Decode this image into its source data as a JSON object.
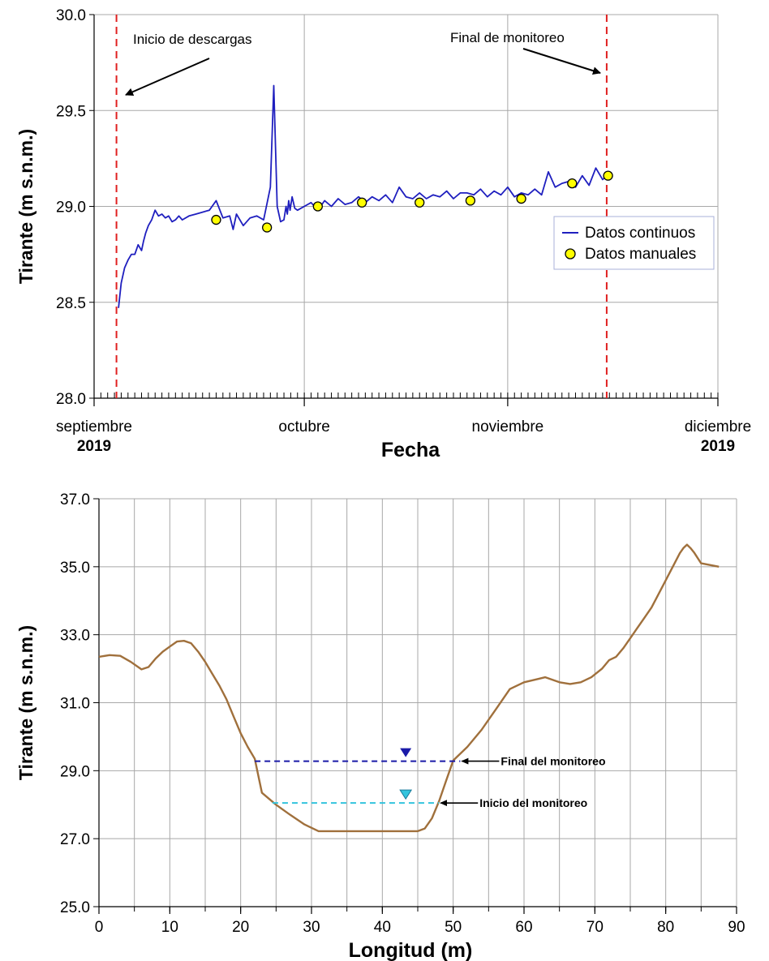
{
  "colors": {
    "continuous": "#1f1fbf",
    "manual_fill": "#ffff00",
    "vline": "#e02020",
    "profile": "#a0703c",
    "final_level": "#1a1aa8",
    "inicio_level": "#33c4dd",
    "grid": "#a8a8a8"
  },
  "chart_data": [
    {
      "type": "line",
      "ylabel": "Tirante (m s.n.m.)",
      "xlabel": "Fecha",
      "ylim": [
        28.0,
        30.0
      ],
      "yticks": [
        "28.0",
        "28.5",
        "29.0",
        "29.5",
        "30.0"
      ],
      "x_range_days": [
        0,
        92
      ],
      "x_tick_labels": [
        {
          "day": 0,
          "label": "septiembre",
          "year": "2019"
        },
        {
          "day": 31,
          "label": "octubre",
          "year": ""
        },
        {
          "day": 61,
          "label": "noviembre",
          "year": ""
        },
        {
          "day": 92,
          "label": "diciembre",
          "year": "2019"
        }
      ],
      "grid": "vertical lines at month starts, horizontal lines at each y tick",
      "legend": {
        "placement": "right",
        "entries": [
          "Datos continuos",
          "Datos manuales"
        ]
      },
      "annotations": [
        {
          "text": "Inicio de descargas",
          "day": 3.3
        },
        {
          "text": "Final de monitoreo",
          "day": 75.6
        }
      ],
      "series": [
        {
          "name": "Datos continuos",
          "style": "line",
          "x": [
            3.6,
            4.0,
            4.5,
            5.0,
            5.5,
            6.0,
            6.5,
            7.0,
            7.3,
            7.6,
            8.0,
            8.5,
            9.0,
            9.5,
            10.0,
            10.5,
            11.0,
            11.5,
            12.0,
            12.5,
            13.0,
            14.0,
            15.0,
            16.0,
            17.0,
            18.0,
            19.0,
            20.0,
            20.5,
            21.0,
            22.0,
            23.0,
            24.0,
            25.0,
            26.0,
            26.5,
            27.0,
            27.5,
            28.0,
            28.3,
            28.5,
            28.7,
            28.9,
            29.2,
            29.6,
            30.0,
            31.0,
            32.0,
            33.0,
            34.0,
            35.0,
            36.0,
            37.0,
            38.0,
            39.0,
            40.0,
            41.0,
            42.0,
            43.0,
            44.0,
            45.0,
            46.0,
            47.0,
            48.0,
            49.0,
            50.0,
            51.0,
            52.0,
            53.0,
            54.0,
            55.0,
            56.0,
            57.0,
            58.0,
            59.0,
            60.0,
            61.0,
            62.0,
            63.0,
            64.0,
            65.0,
            66.0,
            67.0,
            68.0,
            69.0,
            70.0,
            71.0,
            72.0,
            73.0,
            74.0,
            75.0,
            75.6
          ],
          "values": [
            28.47,
            28.6,
            28.68,
            28.72,
            28.75,
            28.75,
            28.8,
            28.77,
            28.82,
            28.86,
            28.9,
            28.93,
            28.98,
            28.95,
            28.96,
            28.94,
            28.95,
            28.92,
            28.93,
            28.95,
            28.93,
            28.95,
            28.96,
            28.97,
            28.98,
            29.03,
            28.94,
            28.95,
            28.88,
            28.96,
            28.9,
            28.94,
            28.95,
            28.93,
            29.1,
            29.63,
            29.0,
            28.92,
            28.93,
            29.0,
            28.96,
            29.03,
            28.98,
            29.05,
            28.99,
            28.98,
            29.0,
            29.02,
            28.98,
            29.03,
            29.0,
            29.04,
            29.01,
            29.02,
            29.05,
            29.02,
            29.05,
            29.03,
            29.06,
            29.02,
            29.1,
            29.05,
            29.04,
            29.07,
            29.04,
            29.06,
            29.05,
            29.08,
            29.04,
            29.07,
            29.07,
            29.06,
            29.09,
            29.05,
            29.08,
            29.06,
            29.1,
            29.05,
            29.07,
            29.06,
            29.09,
            29.06,
            29.18,
            29.1,
            29.12,
            29.13,
            29.1,
            29.16,
            29.11,
            29.2,
            29.14,
            29.16
          ]
        },
        {
          "name": "Datos manuales",
          "style": "points",
          "x": [
            18.0,
            25.5,
            33.0,
            39.5,
            48.0,
            55.5,
            63.0,
            70.5,
            75.8
          ],
          "values": [
            28.93,
            28.89,
            29.0,
            29.02,
            29.02,
            29.03,
            29.04,
            29.12,
            29.16
          ]
        }
      ]
    },
    {
      "type": "line",
      "ylabel": "Tirante (m s.n.m.)",
      "xlabel": "Longitud (m)",
      "xlim": [
        0,
        90
      ],
      "ylim": [
        25.0,
        37.0
      ],
      "xticks": [
        0,
        10,
        20,
        30,
        40,
        50,
        60,
        70,
        80,
        90
      ],
      "yticks": [
        "25.0",
        "27.0",
        "29.0",
        "31.0",
        "33.0",
        "35.0",
        "37.0"
      ],
      "grid": true,
      "series": [
        {
          "style": "line",
          "x": [
            0,
            1.5,
            3,
            4.5,
            6,
            7,
            8,
            9,
            10,
            11,
            12,
            13,
            14,
            15,
            16,
            17,
            18,
            19,
            20,
            21,
            22,
            23,
            25,
            27,
            29,
            31,
            35,
            40,
            45,
            46,
            47,
            48,
            49,
            50,
            52,
            54,
            56,
            58,
            60,
            62,
            63,
            65,
            66.5,
            68,
            69.5,
            71,
            72,
            73,
            74,
            75,
            76,
            77,
            78,
            79,
            80,
            81,
            82,
            82.5,
            83,
            83.5,
            84,
            85,
            87.5
          ],
          "values": [
            32.35,
            32.4,
            32.38,
            32.2,
            31.98,
            32.05,
            32.3,
            32.5,
            32.65,
            32.8,
            32.82,
            32.75,
            32.5,
            32.2,
            31.85,
            31.5,
            31.1,
            30.6,
            30.1,
            29.7,
            29.35,
            28.35,
            28.0,
            27.7,
            27.42,
            27.22,
            27.22,
            27.22,
            27.22,
            27.3,
            27.6,
            28.1,
            28.7,
            29.3,
            29.7,
            30.2,
            30.8,
            31.4,
            31.6,
            31.7,
            31.75,
            31.6,
            31.55,
            31.6,
            31.75,
            32.0,
            32.25,
            32.35,
            32.6,
            32.9,
            33.2,
            33.5,
            33.8,
            34.2,
            34.6,
            35.0,
            35.4,
            35.55,
            35.65,
            35.55,
            35.42,
            35.1,
            35.0
          ]
        }
      ],
      "levels": [
        {
          "label": "Final del monitoreo",
          "y": 29.28,
          "x_start": 22.0,
          "x_end": 51.0,
          "marker_x": 43.3
        },
        {
          "label": "Inicio del monitoreo",
          "y": 28.05,
          "x_start": 24.5,
          "x_end": 48.0,
          "marker_x": 43.3
        }
      ]
    }
  ]
}
